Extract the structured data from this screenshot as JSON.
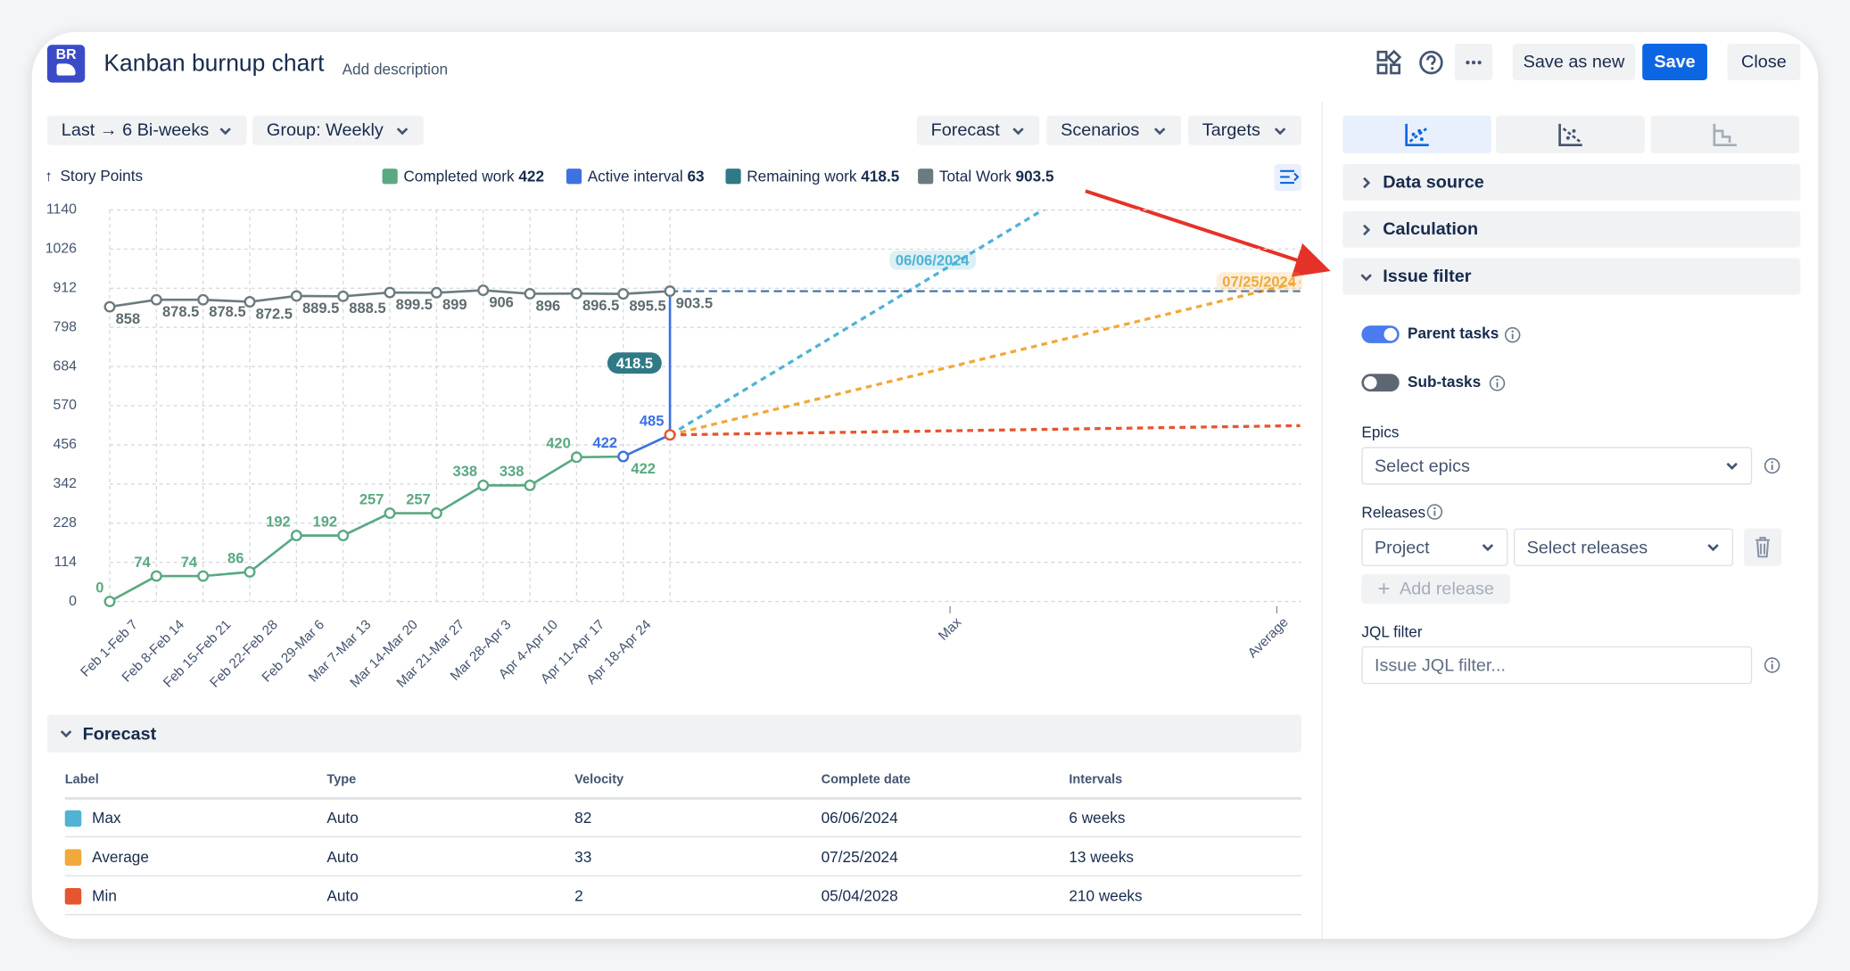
{
  "header": {
    "logo": "BR",
    "title": "Kanban burnup chart",
    "description": "Add description",
    "actions": [
      "Save as new",
      "Save",
      "Close"
    ]
  },
  "toolbar": {
    "left": [
      "Last → 6 Bi-weeks",
      "Group: Weekly"
    ],
    "right": [
      "Forecast",
      "Scenarios",
      "Targets"
    ]
  },
  "chart_data": {
    "type": "line",
    "y_label": "Story Points",
    "categories": [
      "Feb 1-Feb 7",
      "Feb 8-Feb 14",
      "Feb 15-Feb 21",
      "Feb 22-Feb 28",
      "Feb 29-Mar 6",
      "Mar 7-Mar 13",
      "Mar 14-Mar 20",
      "Mar 21-Mar 27",
      "Mar 28-Apr 3",
      "Apr 4-Apr 10",
      "Apr 11-Apr 17",
      "Apr 18-Apr 24",
      null
    ],
    "series": [
      {
        "name": "Completed work",
        "color": "#5aa982",
        "total": 422,
        "values": [
          0,
          74,
          74,
          86,
          192,
          192,
          257,
          257,
          338,
          338,
          420,
          422,
          null
        ]
      },
      {
        "name": "Active interval",
        "color": "#3d72e0",
        "total": 63,
        "values": [
          null,
          null,
          null,
          null,
          null,
          null,
          null,
          null,
          null,
          null,
          null,
          422,
          485
        ]
      },
      {
        "name": "Remaining work",
        "color": "#2f7a86",
        "total": 418.5
      },
      {
        "name": "Total Work",
        "color": "#6b7b80",
        "total": 903.5,
        "values": [
          858,
          878.5,
          878.5,
          872.5,
          889.5,
          888.5,
          899.5,
          899,
          906,
          896,
          896.5,
          895.5,
          903.5
        ]
      }
    ],
    "xlim": [
      0,
      25.5
    ],
    "ylim": [
      0,
      1140
    ],
    "yticks": [
      0,
      114,
      228,
      342,
      456,
      570,
      684,
      798,
      912,
      1026,
      1140
    ],
    "grid": true
  },
  "forecast": {
    "title": "Forecast",
    "columns": [
      "Label",
      "Type",
      "Velocity",
      "Complete date",
      "Intervals"
    ],
    "rows": [
      {
        "label": "Max",
        "color": "#4fb3d4",
        "type": "Auto",
        "velocity": 82,
        "complete_date": "06/06/2024",
        "intervals": {
          "value": 6,
          "label": "6 weeks"
        }
      },
      {
        "label": "Average",
        "color": "#f0a93a",
        "type": "Auto",
        "velocity": 33,
        "complete_date": "07/25/2024",
        "intervals": {
          "value": 13,
          "label": "13 weeks"
        }
      },
      {
        "label": "Min",
        "color": "#e5552f",
        "type": "Auto",
        "velocity": 2,
        "complete_date": "05/04/2028",
        "intervals": {
          "value": 210,
          "label": "210 weeks"
        }
      }
    ]
  },
  "sidebar": {
    "sections": [
      "Data source",
      "Calculation",
      "Issue filter"
    ],
    "toggles": [
      {
        "label": "Parent tasks",
        "on": true
      },
      {
        "label": "Sub-tasks",
        "on": false
      }
    ],
    "epics": {
      "label": "Epics",
      "placeholder": "Select epics"
    },
    "releases": {
      "label": "Releases",
      "scope": "Project",
      "placeholder": "Select releases",
      "add": "Add release"
    },
    "jql": {
      "label": "JQL filter",
      "placeholder": "Issue JQL filter..."
    }
  }
}
